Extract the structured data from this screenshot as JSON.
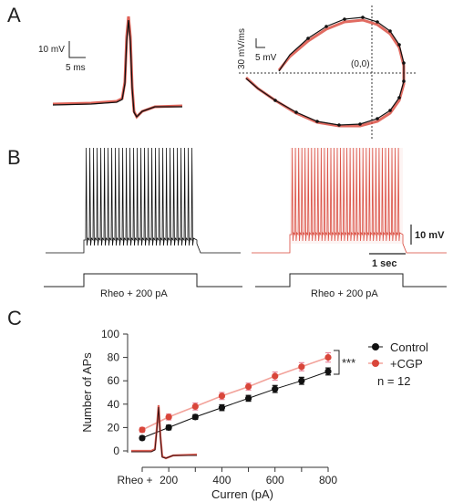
{
  "panels": {
    "a": {
      "letter": "A",
      "waveform_scale": {
        "y": "10 mV",
        "x": "5 ms"
      },
      "phase_scale": {
        "y": "30 mV/ms",
        "x": "5 mV"
      },
      "origin_label": "(0,0)"
    },
    "b": {
      "letter": "B",
      "control_stim_label": "Rheo + 200 pA",
      "cgp_stim_label": "Rheo + 200 pA",
      "scale_y": "10 mV",
      "scale_x": "1 sec"
    },
    "c": {
      "letter": "C",
      "significance": "***",
      "n_label": "n = 12"
    }
  },
  "colors": {
    "control": "#111111",
    "cgp": "#d9463a",
    "cgp_light": "#f2a39b",
    "cgp_error": "#e98aa0"
  },
  "chart_data": {
    "type": "line",
    "xlabel": "Curren (pA)",
    "ylabel": "Number of APs",
    "ylim": [
      0,
      100
    ],
    "yticks": [
      0,
      20,
      40,
      60,
      80,
      100
    ],
    "x_tick_labels": [
      "Rheo +",
      "200",
      "400",
      "600",
      "800"
    ],
    "x": [
      100,
      200,
      300,
      400,
      500,
      600,
      700,
      800
    ],
    "series": [
      {
        "name": "Control",
        "values": [
          11,
          20,
          29,
          37,
          45,
          53,
          60,
          68
        ],
        "errors": [
          1.5,
          2,
          2,
          2.5,
          2.5,
          3,
          3,
          3
        ]
      },
      {
        "name": "+CGP",
        "values": [
          18,
          29,
          38,
          47,
          55,
          64,
          72,
          80
        ],
        "errors": [
          2,
          2.5,
          3,
          3,
          3,
          3.5,
          3.5,
          4
        ]
      }
    ],
    "legend_position": "right",
    "grid": false
  }
}
